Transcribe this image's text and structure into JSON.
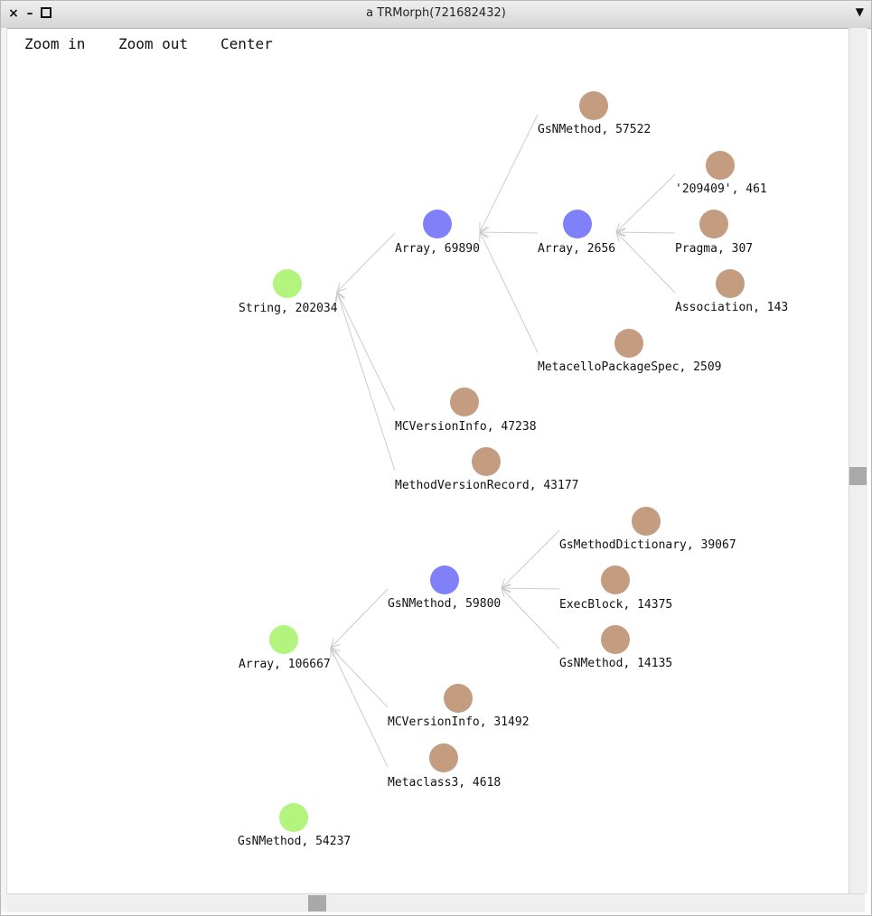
{
  "window": {
    "title": "a TRMorph(721682432)",
    "close_glyph": "×",
    "min_glyph": "–",
    "menu_glyph": "▼"
  },
  "toolbar": {
    "zoom_in": "Zoom in",
    "zoom_out": "Zoom out",
    "center": "Center"
  },
  "colors": {
    "root": "#b2f47e",
    "inner": "#8080f8",
    "leaf": "#c49c80",
    "edge": "#cccccc"
  },
  "nodes": [
    {
      "id": "n1",
      "label": "String, 202034",
      "kind": "root"
    },
    {
      "id": "n2",
      "label": "Array, 69890",
      "kind": "inner"
    },
    {
      "id": "n3",
      "label": "GsNMethod, 57522",
      "kind": "leaf"
    },
    {
      "id": "n4",
      "label": "Array, 2656",
      "kind": "inner"
    },
    {
      "id": "n5",
      "label": "'209409', 461",
      "kind": "leaf"
    },
    {
      "id": "n6",
      "label": "Pragma, 307",
      "kind": "leaf"
    },
    {
      "id": "n7",
      "label": "Association, 143",
      "kind": "leaf"
    },
    {
      "id": "n8",
      "label": "MetacelloPackageSpec, 2509",
      "kind": "leaf"
    },
    {
      "id": "n9",
      "label": "MCVersionInfo, 47238",
      "kind": "leaf"
    },
    {
      "id": "n10",
      "label": "MethodVersionRecord, 43177",
      "kind": "leaf"
    },
    {
      "id": "n11",
      "label": "Array, 106667",
      "kind": "root"
    },
    {
      "id": "n12",
      "label": "GsNMethod, 59800",
      "kind": "inner"
    },
    {
      "id": "n13",
      "label": "GsMethodDictionary, 39067",
      "kind": "leaf"
    },
    {
      "id": "n14",
      "label": "ExecBlock, 14375",
      "kind": "leaf"
    },
    {
      "id": "n15",
      "label": "GsNMethod, 14135",
      "kind": "leaf"
    },
    {
      "id": "n16",
      "label": "MCVersionInfo, 31492",
      "kind": "leaf"
    },
    {
      "id": "n17",
      "label": "Metaclass3, 4618",
      "kind": "leaf"
    },
    {
      "id": "n18",
      "label": "GsNMethod, 54237",
      "kind": "root"
    }
  ],
  "edges": [
    [
      "n2",
      "n1"
    ],
    [
      "n9",
      "n1"
    ],
    [
      "n10",
      "n1"
    ],
    [
      "n3",
      "n2"
    ],
    [
      "n4",
      "n2"
    ],
    [
      "n8",
      "n2"
    ],
    [
      "n5",
      "n4"
    ],
    [
      "n6",
      "n4"
    ],
    [
      "n7",
      "n4"
    ],
    [
      "n12",
      "n11"
    ],
    [
      "n16",
      "n11"
    ],
    [
      "n17",
      "n11"
    ],
    [
      "n13",
      "n12"
    ],
    [
      "n14",
      "n12"
    ],
    [
      "n15",
      "n12"
    ]
  ]
}
